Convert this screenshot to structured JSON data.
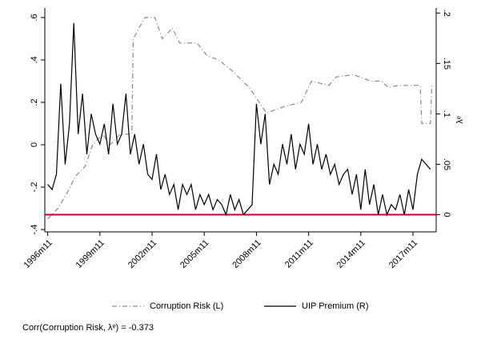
{
  "chart_data": {
    "type": "line",
    "xlim": [
      440,
      710
    ],
    "xticks": [
      {
        "value": 442,
        "label": "1996m11"
      },
      {
        "value": 478,
        "label": "1999m11"
      },
      {
        "value": 514,
        "label": "2002m11"
      },
      {
        "value": 550,
        "label": "2005m11"
      },
      {
        "value": 586,
        "label": "2008m11"
      },
      {
        "value": 622,
        "label": "2011m11"
      },
      {
        "value": 658,
        "label": "2014m11"
      },
      {
        "value": 694,
        "label": "2017m11"
      }
    ],
    "ylim": [
      -0.411,
      0.645
    ],
    "yticks": [
      {
        "value": -0.4,
        "label": "-.4"
      },
      {
        "value": -0.2,
        "label": "-.2"
      },
      0,
      {
        "value": 0.2,
        "label": ".2"
      },
      {
        "value": 0.4,
        "label": ".4"
      },
      {
        "value": 0.6,
        "label": ".6"
      }
    ],
    "y2lim": [
      -0.017,
      0.205
    ],
    "y2ticks": [
      0,
      {
        "value": 0.05,
        "label": ".05"
      },
      {
        "value": 0.1,
        "label": ".1"
      },
      {
        "value": 0.15,
        "label": ".15"
      },
      {
        "value": 0.2,
        "label": ".2"
      }
    ],
    "y2label": "λᵉ",
    "hline": {
      "value": 0,
      "axis": "y2",
      "color": "#c0003c"
    },
    "series": [
      {
        "name": "Corruption Risk (L)",
        "color": "#8c8c8c",
        "dash": "6 3 1 3",
        "x": [
          442,
          449,
          456,
          461,
          468,
          473,
          480,
          485,
          492,
          500,
          501,
          509,
          516,
          521,
          528,
          533,
          545,
          552,
          560,
          569,
          581,
          588,
          593,
          605,
          617,
          624,
          636,
          641,
          653,
          665,
          672,
          677,
          684,
          699,
          700,
          706,
          707
        ],
        "values": [
          -0.35,
          -0.3,
          -0.22,
          -0.15,
          -0.1,
          0.0,
          0.05,
          0.0,
          0.05,
          0.05,
          0.5,
          0.6,
          0.6,
          0.5,
          0.55,
          0.48,
          0.48,
          0.42,
          0.4,
          0.35,
          0.27,
          0.2,
          0.15,
          0.18,
          0.2,
          0.3,
          0.28,
          0.32,
          0.33,
          0.3,
          0.3,
          0.27,
          0.28,
          0.28,
          0.1,
          0.1,
          0.28
        ]
      },
      {
        "name": "UIP Premium (R)",
        "color": "#000000",
        "axis": "y2",
        "x": [
          442,
          445,
          448,
          451,
          454,
          457,
          460,
          463,
          466,
          469,
          472,
          475,
          478,
          481,
          484,
          487,
          490,
          493,
          496,
          499,
          502,
          505,
          508,
          511,
          514,
          517,
          520,
          523,
          526,
          529,
          532,
          535,
          538,
          541,
          544,
          547,
          550,
          553,
          556,
          559,
          562,
          565,
          568,
          571,
          574,
          577,
          580,
          583,
          586,
          589,
          592,
          595,
          598,
          601,
          604,
          607,
          610,
          613,
          616,
          619,
          622,
          625,
          628,
          631,
          634,
          637,
          640,
          643,
          646,
          649,
          652,
          655,
          658,
          661,
          664,
          667,
          670,
          673,
          676,
          679,
          682,
          685,
          688,
          691,
          694,
          697,
          700,
          703,
          706
        ],
        "values": [
          0.03,
          0.025,
          0.04,
          0.13,
          0.05,
          0.09,
          0.19,
          0.08,
          0.12,
          0.06,
          0.1,
          0.08,
          0.07,
          0.09,
          0.06,
          0.11,
          0.07,
          0.08,
          0.12,
          0.06,
          0.08,
          0.05,
          0.07,
          0.04,
          0.035,
          0.06,
          0.025,
          0.04,
          0.02,
          0.03,
          0.005,
          0.03,
          0.02,
          0.03,
          0.005,
          0.02,
          0.01,
          0.02,
          0.005,
          0.015,
          0.01,
          0.0,
          0.02,
          0.005,
          0.015,
          0.0,
          0.005,
          0.01,
          0.11,
          0.07,
          0.1,
          0.03,
          0.05,
          0.04,
          0.07,
          0.05,
          0.08,
          0.045,
          0.07,
          0.06,
          0.09,
          0.05,
          0.07,
          0.045,
          0.06,
          0.04,
          0.05,
          0.03,
          0.04,
          0.045,
          0.02,
          0.04,
          0.005,
          0.045,
          0.01,
          0.03,
          0.0,
          0.02,
          0.0,
          0.01,
          0.005,
          0.02,
          0.0,
          0.025,
          0.005,
          0.04,
          0.055,
          0.05,
          0.045
        ]
      }
    ],
    "note": "Corr(Corruption Risk, λᵉ) = -0.373"
  }
}
